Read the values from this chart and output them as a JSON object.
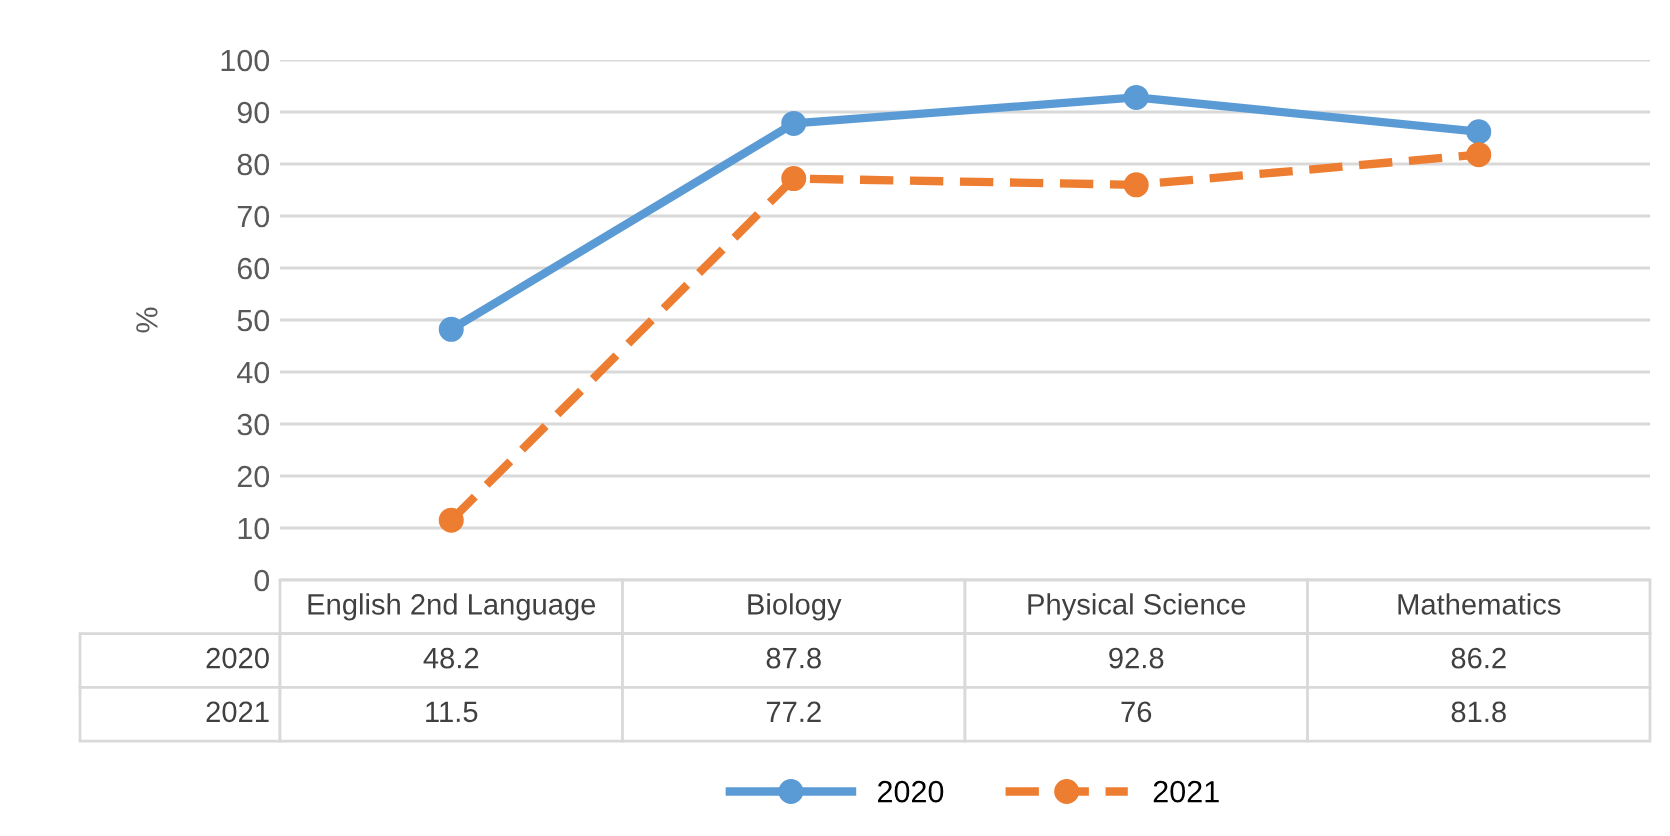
{
  "chart_data": {
    "type": "line",
    "ylabel": "%",
    "categories": [
      "English 2nd Language",
      "Biology",
      "Physical Science",
      "Mathematics"
    ],
    "series": [
      {
        "name": "2020",
        "color": "#5b9bd5",
        "values": [
          48.2,
          87.8,
          92.8,
          86.2
        ],
        "line_style": "solid"
      },
      {
        "name": "2021",
        "color": "#ed7d31",
        "values": [
          11.5,
          77.2,
          76,
          81.8
        ],
        "line_style": "dashed"
      }
    ],
    "ylim": [
      0,
      100
    ],
    "yticks": [
      0,
      10,
      20,
      30,
      40,
      50,
      60,
      70,
      80,
      90,
      100
    ],
    "grid": "y",
    "legend": "bottom",
    "marker": "circle",
    "data_labels": true
  }
}
